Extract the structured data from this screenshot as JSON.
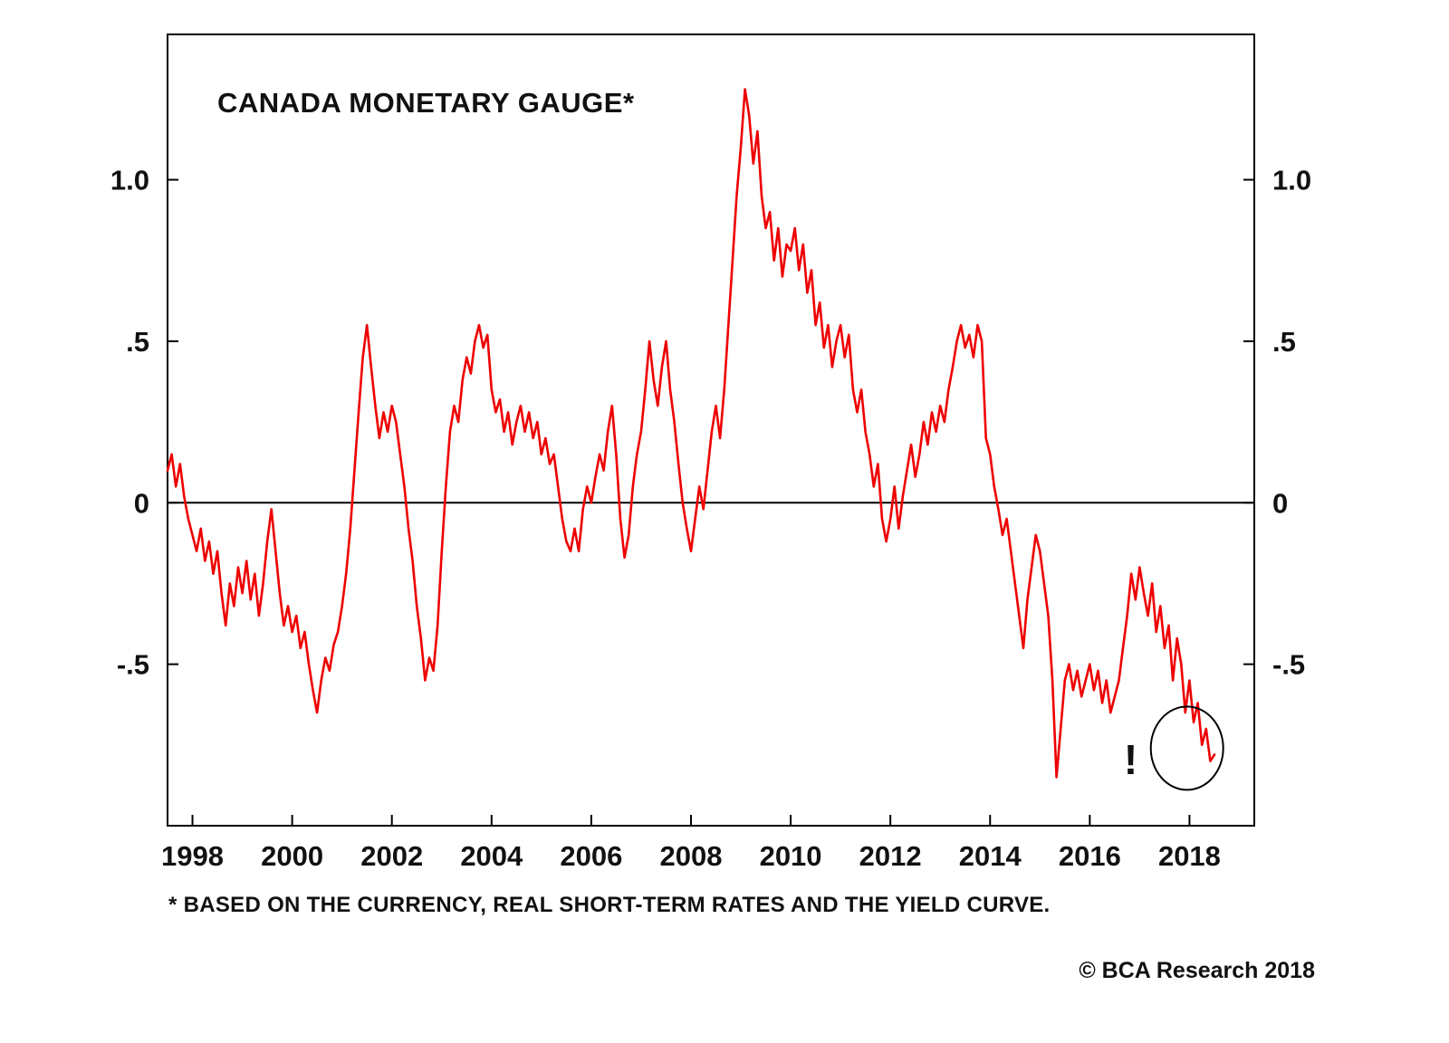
{
  "chart": {
    "title": "CANADA MONETARY GAUGE*",
    "footnote": "* BASED ON THE CURRENCY, REAL SHORT-TERM RATES AND THE YIELD CURVE.",
    "copyright": "© BCA Research 2018"
  },
  "chart_data": {
    "type": "line",
    "title": "CANADA MONETARY GAUGE*",
    "xlabel": "",
    "ylabel": "",
    "grid": false,
    "legend": "none",
    "line_color": "#ee0000",
    "axis_color": "#000000",
    "xlim": [
      1997.5,
      2019.3
    ],
    "ylim": [
      -1.0,
      1.45
    ],
    "x_ticks": [
      1998,
      2000,
      2002,
      2004,
      2006,
      2008,
      2010,
      2012,
      2014,
      2016,
      2018
    ],
    "y_ticks": [
      {
        "value": 1.0,
        "label": "1.0"
      },
      {
        "value": 0.5,
        "label": ".5"
      },
      {
        "value": 0.0,
        "label": "0"
      },
      {
        "value": -0.5,
        "label": "-.5"
      }
    ],
    "zero_line": 0,
    "series": [
      {
        "name": "Canada Monetary Gauge",
        "x_start": 1997.5,
        "x_step": 0.083333,
        "values": [
          0.1,
          0.15,
          0.05,
          0.12,
          0.02,
          -0.05,
          -0.1,
          -0.15,
          -0.08,
          -0.18,
          -0.12,
          -0.22,
          -0.15,
          -0.28,
          -0.38,
          -0.25,
          -0.32,
          -0.2,
          -0.28,
          -0.18,
          -0.3,
          -0.22,
          -0.35,
          -0.25,
          -0.12,
          -0.02,
          -0.15,
          -0.28,
          -0.38,
          -0.32,
          -0.4,
          -0.35,
          -0.45,
          -0.4,
          -0.5,
          -0.58,
          -0.65,
          -0.55,
          -0.48,
          -0.52,
          -0.44,
          -0.4,
          -0.32,
          -0.22,
          -0.08,
          0.1,
          0.28,
          0.45,
          0.55,
          0.42,
          0.3,
          0.2,
          0.28,
          0.22,
          0.3,
          0.25,
          0.15,
          0.05,
          -0.08,
          -0.18,
          -0.32,
          -0.42,
          -0.55,
          -0.48,
          -0.52,
          -0.38,
          -0.15,
          0.05,
          0.22,
          0.3,
          0.25,
          0.38,
          0.45,
          0.4,
          0.5,
          0.55,
          0.48,
          0.52,
          0.35,
          0.28,
          0.32,
          0.22,
          0.28,
          0.18,
          0.25,
          0.3,
          0.22,
          0.28,
          0.2,
          0.25,
          0.15,
          0.2,
          0.12,
          0.15,
          0.05,
          -0.05,
          -0.12,
          -0.15,
          -0.08,
          -0.15,
          -0.02,
          0.05,
          0.0,
          0.08,
          0.15,
          0.1,
          0.22,
          0.3,
          0.15,
          -0.05,
          -0.17,
          -0.1,
          0.05,
          0.15,
          0.22,
          0.35,
          0.5,
          0.38,
          0.3,
          0.42,
          0.5,
          0.35,
          0.25,
          0.12,
          0.0,
          -0.08,
          -0.15,
          -0.05,
          0.05,
          -0.02,
          0.1,
          0.22,
          0.3,
          0.2,
          0.35,
          0.55,
          0.75,
          0.95,
          1.1,
          1.28,
          1.2,
          1.05,
          1.15,
          0.95,
          0.85,
          0.9,
          0.75,
          0.85,
          0.7,
          0.8,
          0.78,
          0.85,
          0.72,
          0.8,
          0.65,
          0.72,
          0.55,
          0.62,
          0.48,
          0.55,
          0.42,
          0.5,
          0.55,
          0.45,
          0.52,
          0.35,
          0.28,
          0.35,
          0.22,
          0.15,
          0.05,
          0.12,
          -0.05,
          -0.12,
          -0.05,
          0.05,
          -0.08,
          0.02,
          0.1,
          0.18,
          0.08,
          0.15,
          0.25,
          0.18,
          0.28,
          0.22,
          0.3,
          0.25,
          0.35,
          0.42,
          0.5,
          0.55,
          0.48,
          0.52,
          0.45,
          0.55,
          0.5,
          0.2,
          0.15,
          0.05,
          -0.02,
          -0.1,
          -0.05,
          -0.15,
          -0.25,
          -0.35,
          -0.45,
          -0.3,
          -0.2,
          -0.1,
          -0.15,
          -0.25,
          -0.35,
          -0.55,
          -0.85,
          -0.7,
          -0.55,
          -0.5,
          -0.58,
          -0.52,
          -0.6,
          -0.55,
          -0.5,
          -0.58,
          -0.52,
          -0.62,
          -0.55,
          -0.65,
          -0.6,
          -0.55,
          -0.45,
          -0.35,
          -0.22,
          -0.3,
          -0.2,
          -0.28,
          -0.35,
          -0.25,
          -0.4,
          -0.32,
          -0.45,
          -0.38,
          -0.55,
          -0.42,
          -0.5,
          -0.65,
          -0.55,
          -0.68,
          -0.62,
          -0.75,
          -0.7,
          -0.8,
          -0.78
        ]
      }
    ],
    "annotation": {
      "text": "!",
      "mark_x": 2016.82,
      "mark_y": -0.84,
      "ellipse_x": 2017.95,
      "ellipse_y": -0.76,
      "ellipse_rx": 40,
      "ellipse_ry": 46
    }
  }
}
